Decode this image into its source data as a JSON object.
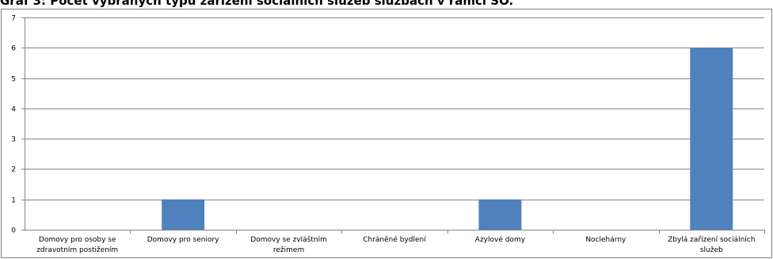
{
  "title": "Graf 3: Počet vybraných typů zařízení sociálních služeb službách v rámci SO.",
  "chart_data": {
    "type": "bar",
    "categories": [
      [
        "Domovy pro osoby se",
        "zdravotním postižením"
      ],
      [
        "Domovy pro seniory"
      ],
      [
        "Domovy se zvláštním",
        "režimem"
      ],
      [
        "Chráněné bydlení"
      ],
      [
        "Azylové domy"
      ],
      [
        "Noclehárny"
      ],
      [
        "Zbylá zařízení sociálních",
        "služeb"
      ]
    ],
    "values": [
      0,
      1,
      0,
      0,
      1,
      0,
      6
    ],
    "ylim": [
      0,
      7
    ],
    "yticks": [
      "0",
      "1",
      "2",
      "3",
      "4",
      "5",
      "6",
      "7"
    ],
    "grid": true,
    "bar_color": "#4f81bd"
  }
}
